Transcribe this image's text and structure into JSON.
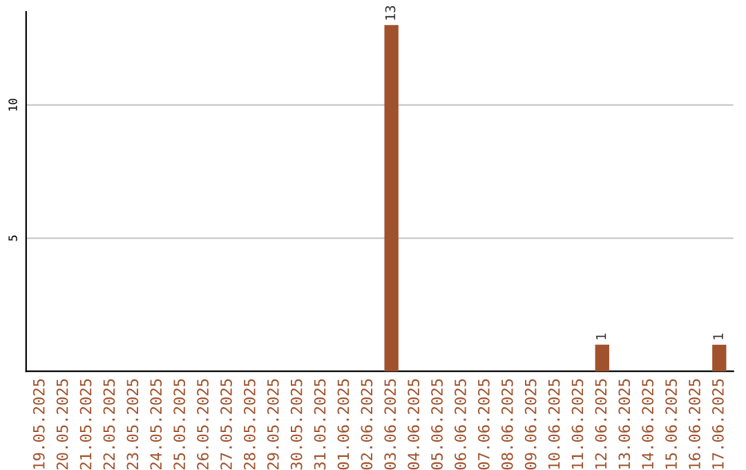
{
  "chart_data": {
    "type": "bar",
    "categories": [
      "19.05.2025",
      "20.05.2025",
      "21.05.2025",
      "22.05.2025",
      "23.05.2025",
      "24.05.2025",
      "25.05.2025",
      "26.05.2025",
      "27.05.2025",
      "28.05.2025",
      "29.05.2025",
      "30.05.2025",
      "31.05.2025",
      "01.06.2025",
      "02.06.2025",
      "03.06.2025",
      "04.06.2025",
      "05.06.2025",
      "06.06.2025",
      "07.06.2025",
      "08.06.2025",
      "09.06.2025",
      "10.06.2025",
      "11.06.2025",
      "12.06.2025",
      "13.06.2025",
      "14.06.2025",
      "15.06.2025",
      "16.06.2025",
      "17.06.2025"
    ],
    "values": [
      0,
      0,
      0,
      0,
      0,
      0,
      0,
      0,
      0,
      0,
      0,
      0,
      0,
      0,
      0,
      13,
      0,
      0,
      0,
      0,
      0,
      0,
      0,
      0,
      1,
      0,
      0,
      0,
      0,
      1
    ],
    "value_labels": [
      null,
      null,
      null,
      null,
      null,
      null,
      null,
      null,
      null,
      null,
      null,
      null,
      null,
      null,
      null,
      "13",
      null,
      null,
      null,
      null,
      null,
      null,
      null,
      null,
      "1",
      null,
      null,
      null,
      null,
      "1"
    ],
    "color": "#a0522d",
    "ylim": [
      0,
      13.5
    ],
    "yticks": [
      5,
      10
    ],
    "grid": "y"
  }
}
